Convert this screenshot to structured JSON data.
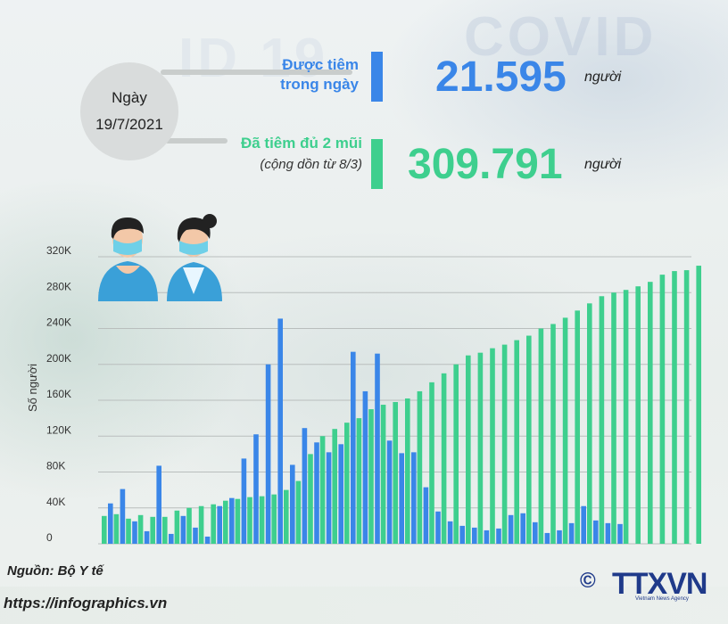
{
  "header": {
    "date_label": "Ngày",
    "date_value": "19/7/2021",
    "daily": {
      "label_line1": "Được tiêm",
      "label_line2": "trong ngày",
      "value": "21.595",
      "unit": "người",
      "color": "#3a86e8"
    },
    "cumulative": {
      "label_line1": "Đã tiêm đủ 2 mũi",
      "label_line2": "(cộng dồn từ 8/3)",
      "value": "309.791",
      "unit": "người",
      "color": "#3ecf8e"
    }
  },
  "chart_data": {
    "type": "bar",
    "ylabel": "Số người",
    "ylim": [
      0,
      320000
    ],
    "yticks": [
      0,
      40000,
      80000,
      120000,
      160000,
      200000,
      240000,
      280000,
      320000
    ],
    "ytick_labels": [
      "0",
      "40K",
      "80K",
      "120K",
      "160K",
      "200K",
      "240K",
      "280K",
      "320K"
    ],
    "grid": true,
    "series": [
      {
        "color": "#3ecf8e",
        "values": [
          31000,
          33000,
          28000,
          32000,
          30000,
          30000,
          37000,
          40000,
          42000,
          44000,
          48000,
          50000,
          52000,
          53000,
          55000,
          60000,
          70000,
          100000,
          120000,
          128000,
          135000,
          140000,
          150000,
          155000,
          158000,
          162000,
          170000,
          180000,
          190000,
          200000,
          210000,
          213000,
          218000,
          222000,
          227000,
          232000,
          240000,
          245000,
          252000,
          260000,
          268000,
          276000,
          280000,
          283000,
          287000,
          292000,
          300000,
          304000,
          305000,
          310000
        ]
      },
      {
        "color": "#3a86e8",
        "values": [
          45000,
          61000,
          25000,
          14000,
          87000,
          11000,
          31000,
          18000,
          8000,
          42000,
          51000,
          95000,
          122000,
          200000,
          251000,
          88000,
          129000,
          113000,
          102000,
          111000,
          214000,
          170000,
          212000,
          115000,
          101000,
          102000,
          63000,
          36000,
          25000,
          20000,
          18000,
          15000,
          17000,
          32000,
          34000,
          24000,
          12000,
          15000,
          23000,
          42000,
          26000,
          23000,
          22000
        ]
      }
    ]
  },
  "footer": {
    "source": "Nguồn: Bộ Y tế",
    "website": "https://infographics.vn",
    "logo_text": "TTXVN",
    "logo_copyright": "©",
    "logo_subtitle": "Vietnam News Agency"
  }
}
